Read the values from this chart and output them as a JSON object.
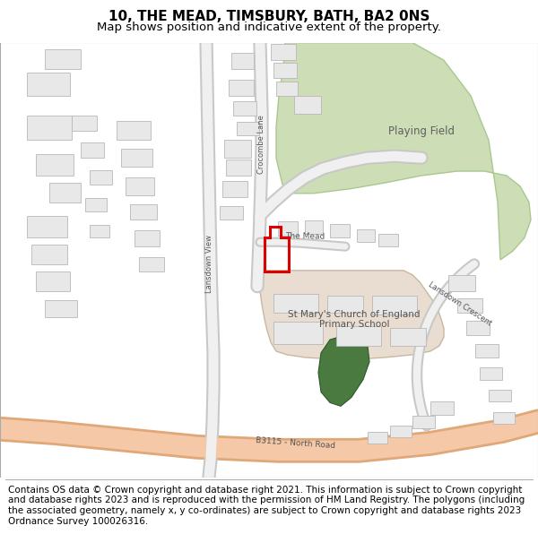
{
  "title": "10, THE MEAD, TIMSBURY, BATH, BA2 0NS",
  "subtitle": "Map shows position and indicative extent of the property.",
  "footer": "Contains OS data © Crown copyright and database right 2021. This information is subject to Crown copyright and database rights 2023 and is reproduced with the permission of HM Land Registry. The polygons (including the associated geometry, namely x, y co-ordinates) are subject to Crown copyright and database rights 2023 Ordnance Survey 100026316.",
  "bg_color": "#ffffff",
  "map_bg": "#ffffff",
  "bld_fc": "#e8e8e8",
  "bld_ec": "#b8b8b8",
  "pf_fc": "#cdddb5",
  "pf_ec": "#a8c890",
  "school_fc": "#e8ddd0",
  "school_ec": "#c8b8a0",
  "green_fc": "#4a7a40",
  "road_main_fc": "#f5c8a8",
  "road_main_ec": "#e0a878",
  "road_minor_fc": "#f0f0f0",
  "road_minor_ec": "#c8c8c8",
  "red_ec": "#dd0000",
  "title_fs": 11,
  "sub_fs": 9.5,
  "footer_fs": 7.5,
  "label_c": "#555555"
}
